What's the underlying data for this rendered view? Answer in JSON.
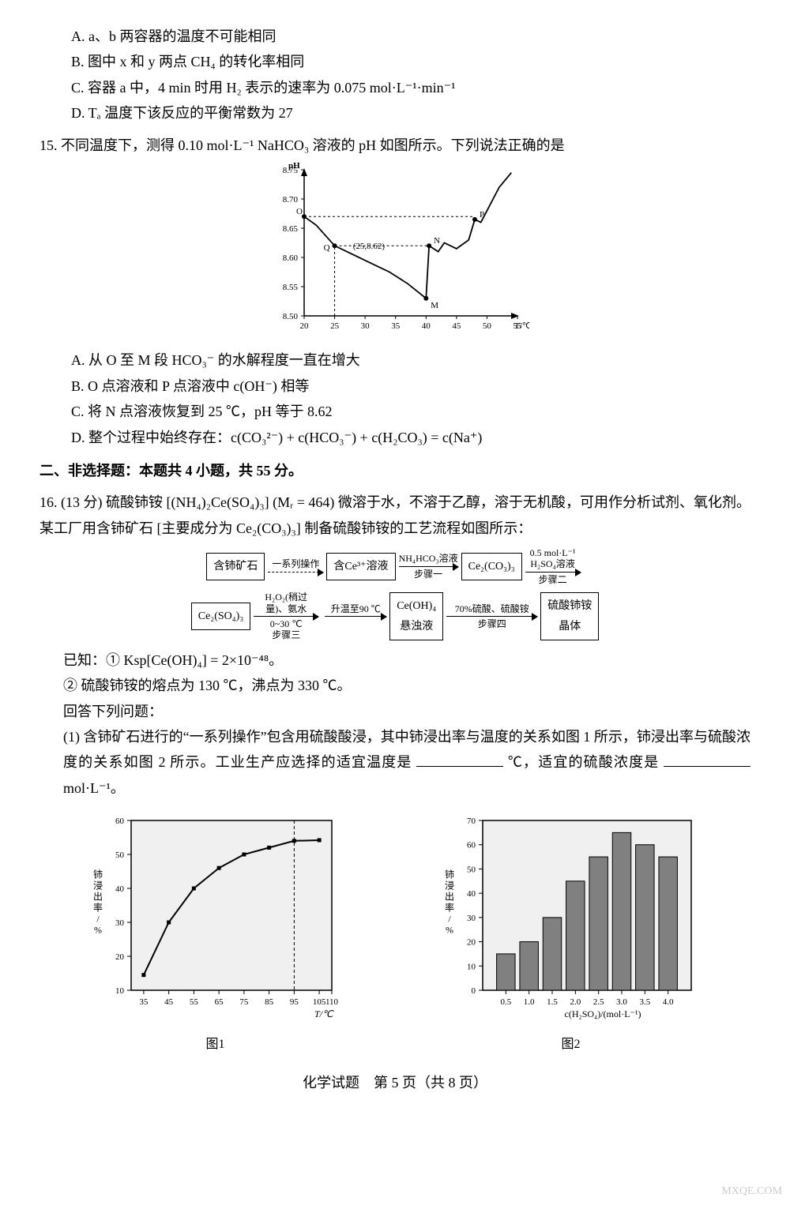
{
  "q14": {
    "A": "A. a、b 两容器的温度不可能相同",
    "B": "B. 图中 x 和 y 两点 CH₄ 的转化率相同",
    "C": "C. 容器 a 中，4 min 时用 H₂ 表示的速率为 0.075 mol·L⁻¹·min⁻¹",
    "D": "D. Tₐ 温度下该反应的平衡常数为 27"
  },
  "q15": {
    "stem": "15. 不同温度下，测得 0.10 mol·L⁻¹ NaHCO₃ 溶液的 pH 如图所示。下列说法正确的是",
    "chart": {
      "type": "line",
      "xlim": [
        20,
        55
      ],
      "ylim": [
        8.5,
        8.75
      ],
      "xticks": [
        20,
        25,
        30,
        35,
        40,
        45,
        50,
        55
      ],
      "yticks": [
        8.5,
        8.55,
        8.6,
        8.65,
        8.7,
        8.75
      ],
      "ylabel": "pH",
      "xlabel": "T/℃",
      "guide_x": 25,
      "annotation_label": "(25,8.62)",
      "points": {
        "O": [
          20,
          8.67
        ],
        "Q": [
          25,
          8.62
        ],
        "M": [
          40,
          8.53
        ],
        "N": [
          40.5,
          8.62
        ],
        "P": [
          48,
          8.665
        ]
      },
      "series": [
        {
          "name": "main",
          "color": "#000000",
          "data": [
            [
              20,
              8.67
            ],
            [
              22,
              8.655
            ],
            [
              25,
              8.62
            ],
            [
              28,
              8.605
            ],
            [
              31,
              8.59
            ],
            [
              34,
              8.575
            ],
            [
              37,
              8.555
            ],
            [
              40,
              8.53
            ],
            [
              40.5,
              8.62
            ],
            [
              42,
              8.61
            ],
            [
              43,
              8.625
            ],
            [
              45,
              8.615
            ],
            [
              47,
              8.63
            ],
            [
              48,
              8.665
            ],
            [
              49,
              8.66
            ],
            [
              50,
              8.68
            ],
            [
              52,
              8.72
            ],
            [
              54,
              8.745
            ]
          ]
        }
      ],
      "label_fontsize": 11,
      "bg": "#ffffff",
      "axis_color": "#000000"
    },
    "A": "A. 从 O 至 M 段 HCO₃⁻ 的水解程度一直在增大",
    "B": "B. O 点溶液和 P 点溶液中 c(OH⁻) 相等",
    "C": "C. 将 N 点溶液恢复到 25 ℃，pH 等于 8.62",
    "D": "D. 整个过程中始终存在：c(CO₃²⁻) + c(HCO₃⁻) + c(H₂CO₃) = c(Na⁺)"
  },
  "section2": "二、非选择题：本题共 4 小题，共 55 分。",
  "q16": {
    "stem1": "16. (13 分) 硫酸铈铵 [(NH₄)₂Ce(SO₄)₃] (Mᵣ = 464) 微溶于水，不溶于乙醇，溶于无机酸，可用作分析试剂、氧化剂。某工厂用含铈矿石 [主要成分为 Ce₂(CO₃)₃] 制备硫酸铈铵的工艺流程如图所示：",
    "flow": {
      "row1": {
        "b1": "含铈矿石",
        "a1t": "一系列操作",
        "a1b": "",
        "b2": "含Ce³⁺溶液",
        "a2t": "NH₄HCO₃溶液",
        "a2b": "步骤一",
        "b3": "Ce₂(CO₃)₃",
        "a3t1": "0.5 mol·L⁻¹",
        "a3t2": "H₂SO₄溶液",
        "a3b": "步骤二"
      },
      "row2": {
        "b1": "Ce₂(SO₄)₃",
        "a1t1": "H₂O₂(稍过",
        "a1t2": "量)、氨水",
        "a1b1": "0~30 ℃",
        "a1b2": "步骤三",
        "a2t": "升温至90 ℃",
        "b2top": "Ce(OH)₄",
        "b2bot": "悬浊液",
        "a3t": "70%硫酸、硫酸铵",
        "a3b": "步骤四",
        "b3top": "硫酸铈铵",
        "b3bot": "晶体"
      }
    },
    "known_lead": "已知：",
    "known1": "① Ksp[Ce(OH)₄] = 2×10⁻⁴⁸。",
    "known2": "② 硫酸铈铵的熔点为 130 ℃，沸点为 330 ℃。",
    "answer_lead": "回答下列问题：",
    "sub1a": "(1) 含铈矿石进行的“一系列操作”包含用硫酸酸浸，其中铈浸出率与温度的关系如图 1 所示，铈浸出率与硫酸浓度的关系如图 2 所示。工业生产应选择的适宜温度是",
    "sub1b": "℃，适宜的硫酸浓度是",
    "sub1c": "mol·L⁻¹。",
    "fig1_label": "图1",
    "fig2_label": "图2",
    "chart1": {
      "type": "line",
      "xlim": [
        30,
        110
      ],
      "ylim": [
        10,
        60
      ],
      "xticks": [
        35,
        45,
        55,
        65,
        75,
        85,
        95,
        105,
        110
      ],
      "yticks": [
        10,
        20,
        30,
        40,
        50,
        60
      ],
      "xlabel": "T/℃",
      "ylabel": "铈浸出率/%",
      "guide_x": 95,
      "data": [
        [
          35,
          14.5
        ],
        [
          45,
          30
        ],
        [
          55,
          40
        ],
        [
          65,
          46
        ],
        [
          75,
          50
        ],
        [
          85,
          52
        ],
        [
          95,
          54
        ],
        [
          105,
          54.2
        ]
      ],
      "marker": "square",
      "marker_size": 5,
      "line_color": "#000000",
      "line_width": 2,
      "bg": "#f0f0f0",
      "axis_color": "#000000",
      "fontsize": 11
    },
    "chart2": {
      "type": "bar",
      "xlim": [
        0,
        4.5
      ],
      "ylim": [
        0,
        70
      ],
      "categories": [
        0.5,
        1.0,
        1.5,
        2.0,
        2.5,
        3.0,
        3.5,
        4.0
      ],
      "yticks": [
        0,
        10,
        20,
        30,
        40,
        50,
        60,
        70
      ],
      "values": [
        15,
        20,
        30,
        45,
        55,
        65,
        60,
        55
      ],
      "bar_color": "#808080",
      "bar_width": 0.4,
      "xlabel": "c(H₂SO₄)/(mol·L⁻¹)",
      "ylabel": "铈浸出率/%",
      "bg": "#f0f0f0",
      "axis_color": "#000000",
      "fontsize": 11
    }
  },
  "footer": "化学试题　第 5 页（共 8 页）",
  "watermark": "MXQE.COM"
}
